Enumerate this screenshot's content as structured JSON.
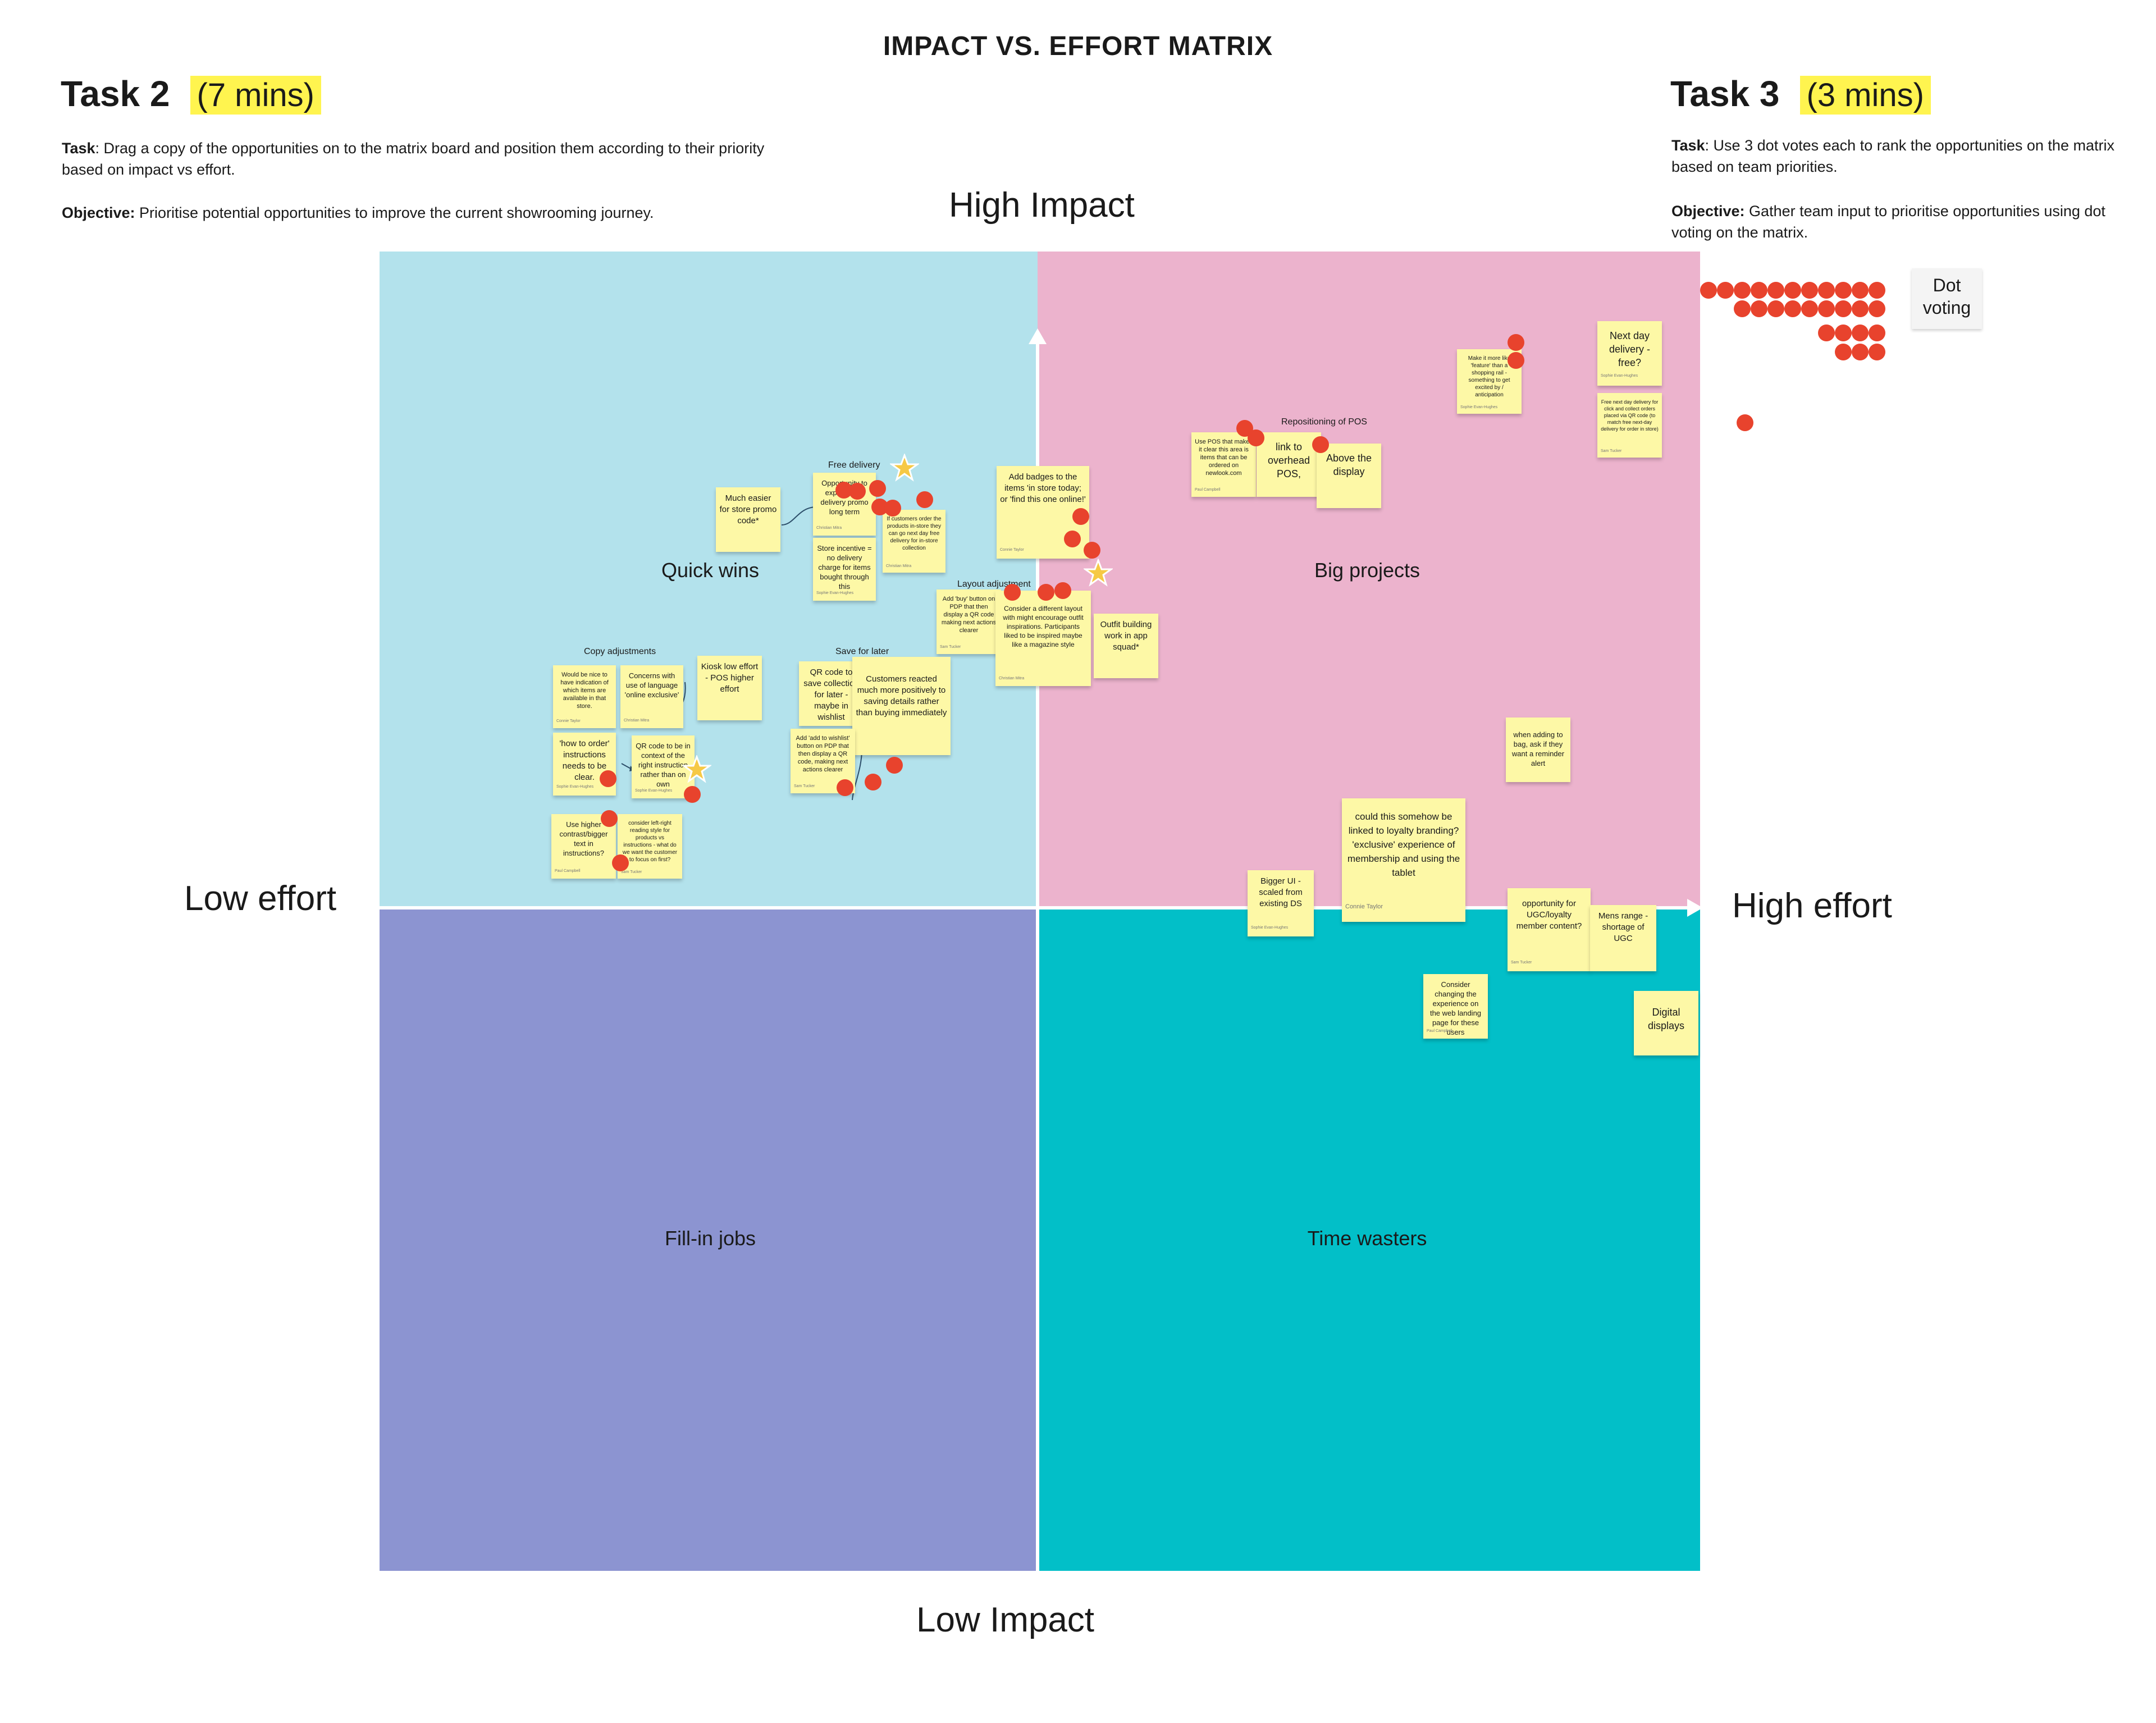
{
  "board": {
    "title": "IMPACT VS. EFFORT MATRIX"
  },
  "task2": {
    "heading": "Task 2",
    "time": "(7 mins)",
    "task_label": "Task",
    "task_text": ": Drag a copy of the opportunities on to the matrix board and position them according to their priority based on impact vs effort.",
    "objective_label": "Objective:",
    "objective_text": " Prioritise potential opportunities to improve the current showrooming journey."
  },
  "task3": {
    "heading": "Task 3",
    "time": "(3 mins)",
    "task_label": "Task",
    "task_text": ": Use 3 dot votes each to rank the opportunities on the matrix based on team priorities.",
    "objective_label": "Objective:",
    "objective_text": " Gather team input to prioritise opportunities using dot voting on the matrix."
  },
  "axes": {
    "high_impact": "High Impact",
    "low_impact": "Low Impact",
    "low_effort": "Low effort",
    "high_effort": "High effort"
  },
  "quadrants": {
    "quick_wins": "Quick wins",
    "big_projects": "Big projects",
    "fill_in_jobs": "Fill-in jobs",
    "time_wasters": "Time wasters"
  },
  "colors": {
    "quick_wins": "#b3e2ec",
    "big_projects": "#ecb3cd",
    "fill_in_jobs": "#8c94d1",
    "time_wasters": "#02bfc8",
    "sticky": "#fdf8a6",
    "dot": "#e8432d",
    "highlight": "#fff44f"
  },
  "clusters": {
    "free_delivery": "Free delivery",
    "copy_adjustments": "Copy adjustments",
    "save_for_later": "Save for later",
    "layout_adjustment": "Layout adjustment",
    "repositioning_pos": "Repositioning of POS"
  },
  "dot_legend": {
    "label": "Dot voting"
  },
  "notes": {
    "n1": {
      "text": "Much easier for store promo code*"
    },
    "n2": {
      "text": "Opportunity to explore free delivery promo long term",
      "author": "Christian Mitra"
    },
    "n3": {
      "text": "Store incentive = no delivery charge for items bought through this",
      "author": "Sophie Evan-Hughes"
    },
    "n4": {
      "text": "If customers order the products in-store they can go next day free delivery for in-store collection",
      "author": "Christian Mitra"
    },
    "n5": {
      "text": "Add badges to the items 'in store today; or 'find this one online!'",
      "author": "Connie Taylor"
    },
    "n6": {
      "text": "Add 'buy' button on PDP that then display a QR code making next actions clearer",
      "author": "Sam Tucker"
    },
    "n7": {
      "text": "Consider a different layout with might encourage outfit inspirations. Participants liked to be inspired maybe like a magazine style",
      "author": "Christian Mitra"
    },
    "n8": {
      "text": "Outfit building work in app squad*"
    },
    "n9": {
      "text": "Would be nice to have indication of which items are available in that store.",
      "author": "Connie Taylor"
    },
    "n10": {
      "text": "Concerns with use of language 'online exclusive'",
      "author": "Christian Mitra"
    },
    "n11": {
      "text": "Kiosk low effort - POS higher effort"
    },
    "n12": {
      "text": "'how to order' instructions needs to be clear.",
      "author": "Sophie Evan-Hughes"
    },
    "n13": {
      "text": "QR code to be in context of the right instruction rather than on own",
      "author": "Sophie Evan-Hughes"
    },
    "n14": {
      "text": "Use higher contrast/bigger text in instructions?",
      "author": "Paul Campbell"
    },
    "n15": {
      "text": "consider left-right reading style for products vs instructions - what do we want the customer to focus on first?",
      "author": "Sam Tucker"
    },
    "n16": {
      "text": "QR code to save collection for later - maybe in wishlist"
    },
    "n17": {
      "text": "Customers reacted much more positively to saving details rather than buying immediately"
    },
    "n18": {
      "text": "Add 'add to wishlist' button on PDP that then display a QR code, making next actions clearer",
      "author": "Sam Tucker"
    },
    "n19": {
      "text": "Use POS that makes it clear this area is items that can be ordered on newlook.com",
      "author": "Paul Campbell"
    },
    "n20": {
      "text": "link to overhead POS,"
    },
    "n21": {
      "text": "Above the display"
    },
    "n22": {
      "text": "Make it more like 'feature' than a shopping rail - something to get excited by / anticipation",
      "author": "Sophie Evan-Hughes"
    },
    "n23": {
      "text": "Next day delivery - free?",
      "author": "Sophie Evan-Hughes"
    },
    "n24": {
      "text": "Free next day delivery for click and collect orders placed via QR code (to match free next-day delivery for order in store)",
      "author": "Sam Tucker"
    },
    "n25": {
      "text": "when adding to bag, ask if they want a reminder alert"
    },
    "n26": {
      "text": "could this somehow be linked to loyalty branding? 'exclusive' experience of membership and using the tablet",
      "author": "Connie Taylor"
    },
    "n27": {
      "text": "Bigger UI - scaled from existing DS",
      "author": "Sophie Evan-Hughes"
    },
    "n28": {
      "text": "opportunity for UGC/loyalty member content?",
      "author": "Sam Tucker"
    },
    "n29": {
      "text": "Mens range - shortage of UGC"
    },
    "n30": {
      "text": "Consider changing the experience on the web landing page for these users",
      "author": "Paul Campbell"
    },
    "n31": {
      "text": "Digital displays"
    }
  },
  "icons": {
    "star": "star-sticker-icon",
    "dot": "vote-dot-icon",
    "arrow": "axis-arrow-icon"
  }
}
